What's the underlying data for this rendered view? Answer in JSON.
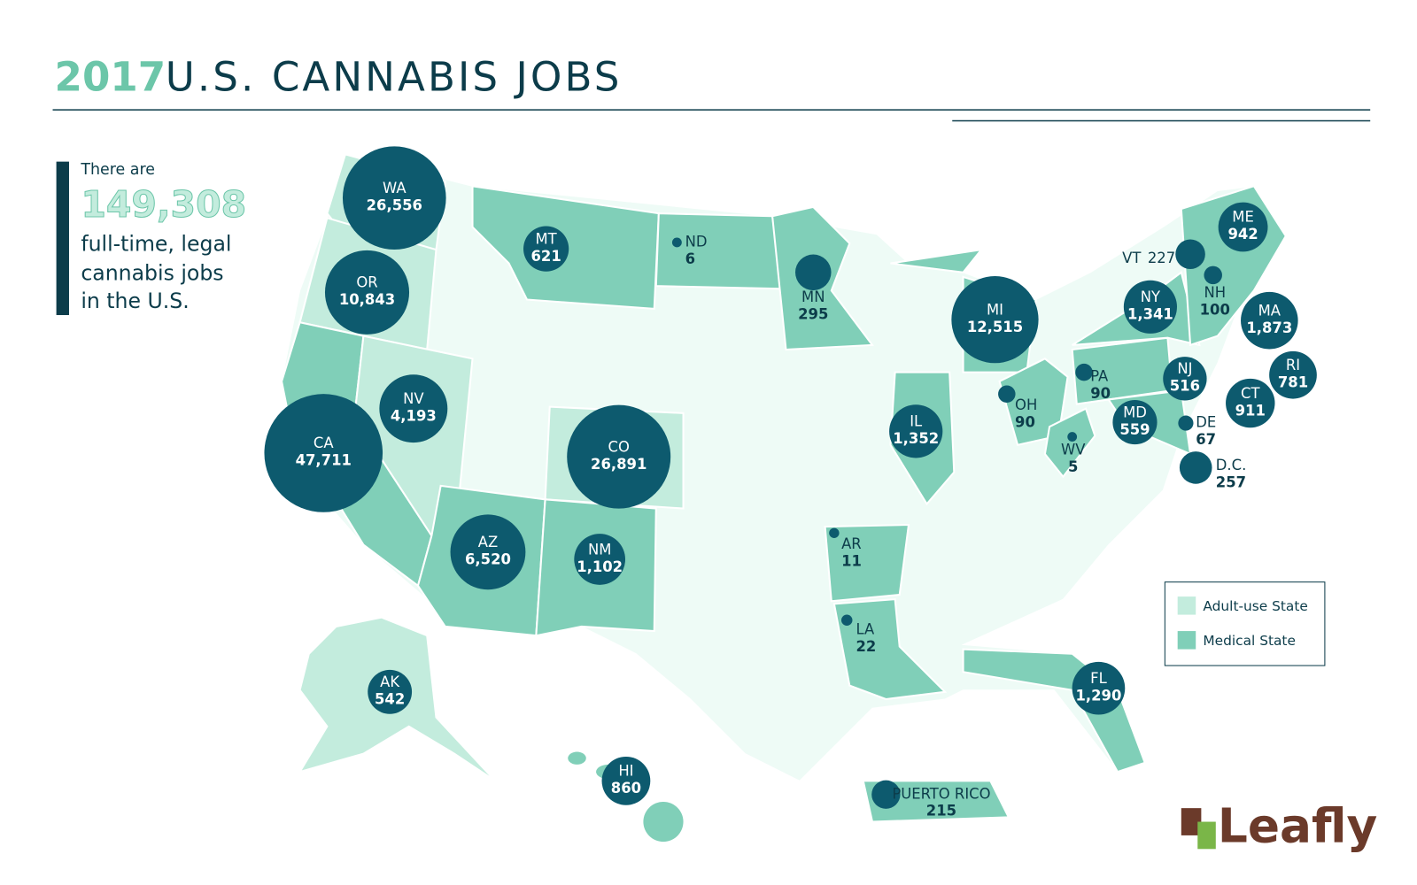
{
  "header": {
    "year": "2017",
    "title": "U.S. CANNABIS JOBS"
  },
  "summary": {
    "intro": "There are",
    "total": 149308,
    "total_label": "149,308",
    "lines": [
      "full-time, legal",
      "cannabis jobs",
      "in the U.S."
    ]
  },
  "legend": [
    "Adult-use State",
    "Medical State"
  ],
  "logo": "Leafly",
  "states": [
    {
      "name": "WA",
      "jobs": 26556,
      "jobs_label": "26,556"
    },
    {
      "name": "OR",
      "jobs": 10843,
      "jobs_label": "10,843"
    },
    {
      "name": "CA",
      "jobs": 47711,
      "jobs_label": "47,711"
    },
    {
      "name": "NV",
      "jobs": 4193,
      "jobs_label": "4,193"
    },
    {
      "name": "MT",
      "jobs": 621
    },
    {
      "name": "ND",
      "jobs": 6
    },
    {
      "name": "MN",
      "jobs": 295
    },
    {
      "name": "MI",
      "jobs": 12515,
      "jobs_label": "12,515"
    },
    {
      "name": "IL",
      "jobs": 1352,
      "jobs_label": "1,352"
    },
    {
      "name": "CO",
      "jobs": 26891,
      "jobs_label": "26,891"
    },
    {
      "name": "AZ",
      "jobs": 6520,
      "jobs_label": "6,520"
    },
    {
      "name": "NM",
      "jobs": 1102,
      "jobs_label": "1,102"
    },
    {
      "name": "AR",
      "jobs": 11
    },
    {
      "name": "LA",
      "jobs": 22
    },
    {
      "name": "OH",
      "jobs": 90
    },
    {
      "name": "PA",
      "jobs": 90
    },
    {
      "name": "WV",
      "jobs": 5
    },
    {
      "name": "NY",
      "jobs": 1341,
      "jobs_label": "1,341"
    },
    {
      "name": "VT",
      "jobs": 227
    },
    {
      "name": "NH",
      "jobs": 100
    },
    {
      "name": "ME",
      "jobs": 942
    },
    {
      "name": "MA",
      "jobs": 1873,
      "jobs_label": "1,873"
    },
    {
      "name": "RI",
      "jobs": 781
    },
    {
      "name": "CT",
      "jobs": 911
    },
    {
      "name": "NJ",
      "jobs": 516
    },
    {
      "name": "MD",
      "jobs": 559
    },
    {
      "name": "DE",
      "jobs": 67
    },
    {
      "name": "D.C.",
      "jobs": 257
    },
    {
      "name": "FL",
      "jobs": 1290,
      "jobs_label": "1,290"
    },
    {
      "name": "AK",
      "jobs": 542
    },
    {
      "name": "HI",
      "jobs": 860
    },
    {
      "name": "PUERTO RICO",
      "jobs": 215
    }
  ]
}
